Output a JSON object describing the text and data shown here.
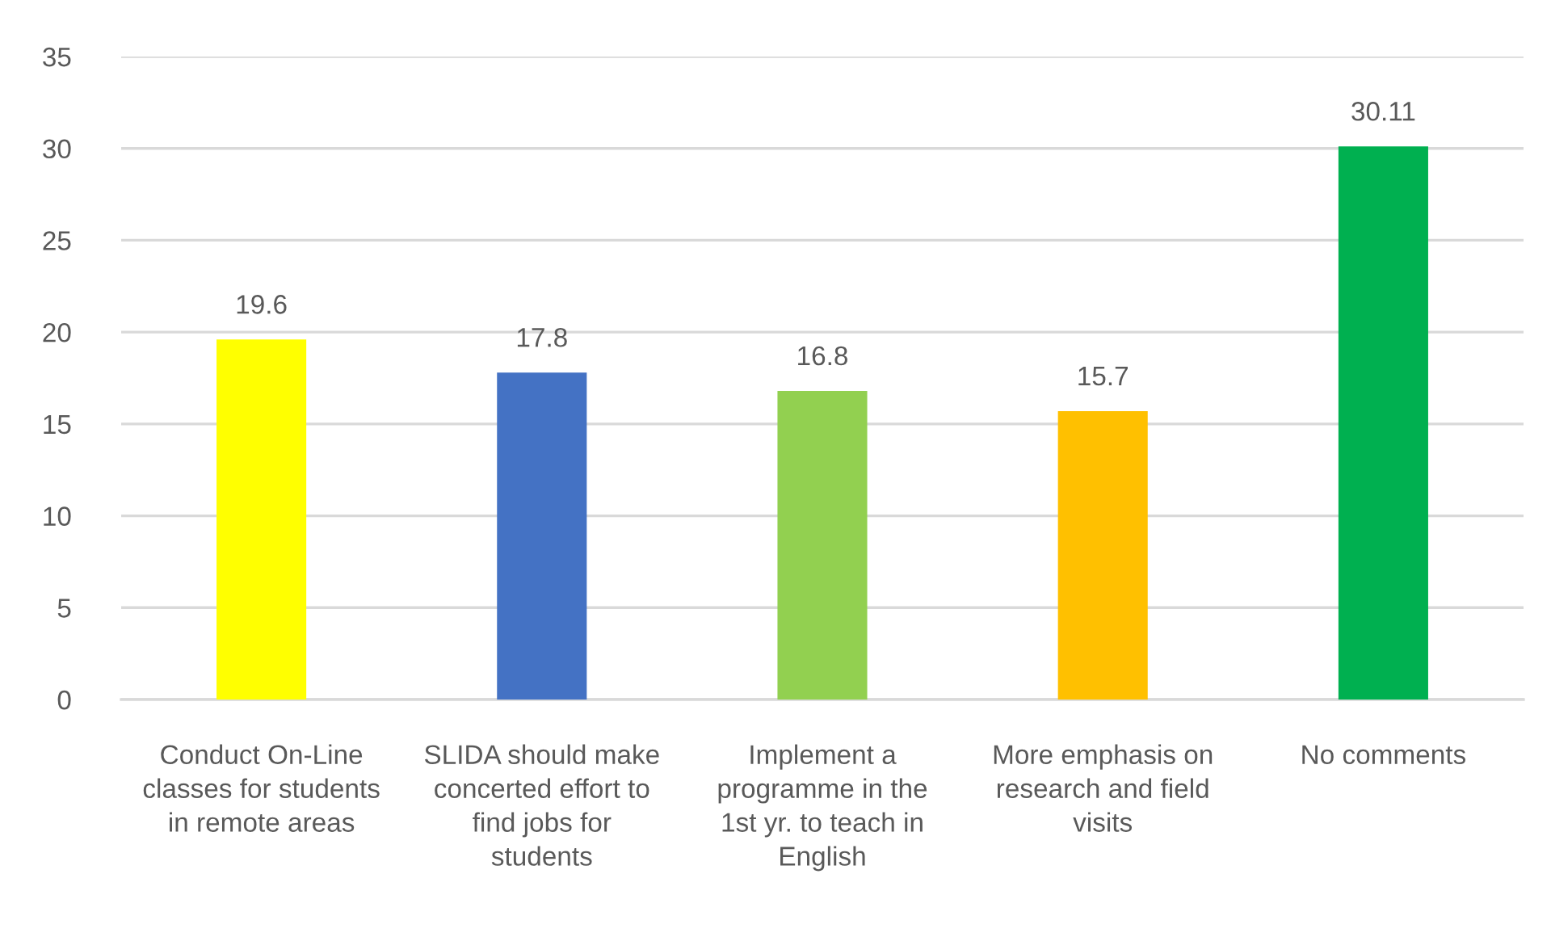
{
  "chart_data": {
    "type": "bar",
    "categories": [
      "Conduct On-Line classes for students in remote areas",
      "SLIDA should make concerted effort to find jobs for students",
      "Implement a programme in the 1st yr. to teach in English",
      "More emphasis on research and field visits",
      "No comments"
    ],
    "values": [
      19.6,
      17.8,
      16.8,
      15.7,
      30.11
    ],
    "colors": [
      "#ffff00",
      "#4472c4",
      "#92d050",
      "#ffc000",
      "#00b050"
    ],
    "ylim": [
      0,
      35
    ],
    "yticks": [
      0,
      5,
      10,
      15,
      20,
      25,
      30,
      35
    ],
    "grid": "y",
    "data_labels": true
  }
}
